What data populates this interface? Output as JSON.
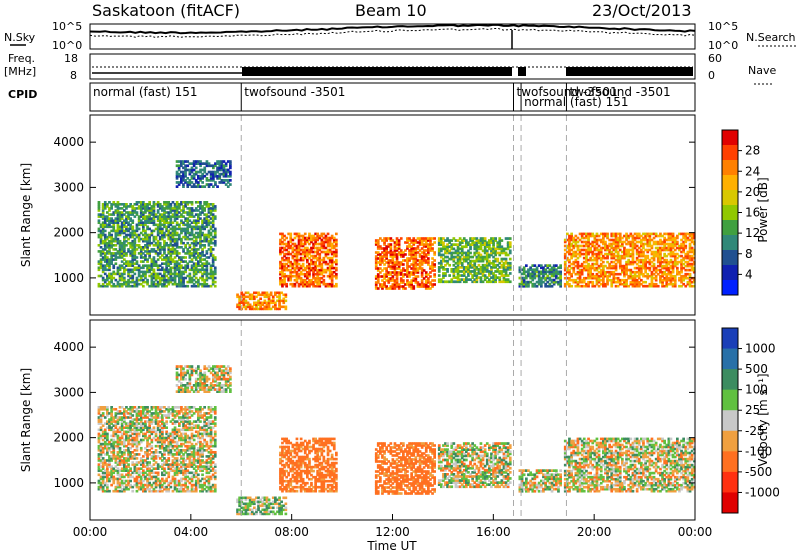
{
  "header": {
    "station": "Saskatoon (fitACF)",
    "beam": "Beam 10",
    "date": "23/Oct/2013"
  },
  "noise_panel": {
    "left_label": "N.Sky",
    "right_label": "N.Search",
    "left_ticks": [
      "10^5",
      "10^0"
    ],
    "right_ticks": [
      "10^5",
      "10^0"
    ]
  },
  "freq_panel": {
    "left_label_1": "Freq.",
    "left_label_2": "[MHz]",
    "left_ticks": [
      "18",
      "8"
    ],
    "right_label": "Nave",
    "right_ticks": [
      "60",
      "0"
    ]
  },
  "cpid_panel": {
    "label": "CPID",
    "segments": [
      {
        "text": "normal (fast) 151",
        "start_h": 0.0
      },
      {
        "text": "twofsound -3501",
        "start_h": 6.0
      },
      {
        "text": "twofsound -3501",
        "start_h": 16.8
      },
      {
        "text": "normal (fast) 151",
        "start_h": 17.1
      },
      {
        "text": "twofsound -3501",
        "start_h": 18.9
      }
    ]
  },
  "power_panel": {
    "ylabel": "Slant Range [km]",
    "yticks": [
      "4000",
      "3000",
      "2000",
      "1000"
    ],
    "colorbar_label": "Power [dB]",
    "colorbar_ticks": [
      "28",
      "24",
      "20",
      "16",
      "12",
      "8",
      "4"
    ],
    "colorbar_colors": [
      "#e00000",
      "#ff4000",
      "#ff8000",
      "#ffb000",
      "#d8c800",
      "#90c800",
      "#40a040",
      "#308878",
      "#205090",
      "#1020b0",
      "#0020ff"
    ]
  },
  "velocity_panel": {
    "ylabel": "Slant Range [km]",
    "yticks": [
      "4000",
      "3000",
      "2000",
      "1000"
    ],
    "colorbar_label": "Velocity [m s⁻¹]",
    "colorbar_ticks": [
      "1000",
      "500",
      "100",
      "25",
      "-25",
      "-100",
      "-500",
      "-1000"
    ],
    "colorbar_colors": [
      "#1a3fb8",
      "#2870a8",
      "#3c8c60",
      "#60c040",
      "#c8c8c8",
      "#f0a040",
      "#ff7020",
      "#ff3010",
      "#e00000"
    ]
  },
  "xaxis": {
    "label": "Time UT",
    "ticks": [
      "00:00",
      "04:00",
      "08:00",
      "12:00",
      "16:00",
      "20:00",
      "00:00"
    ]
  },
  "chart_data": {
    "type": "heatmap",
    "title": "Saskatoon (fitACF)   Beam 10   23/Oct/2013",
    "xlabel": "Time UT",
    "ylabel": "Slant Range [km]",
    "xlim_hours": [
      0,
      24
    ],
    "ylim_km": [
      180,
      4600
    ],
    "grid": false,
    "power_colorbar_db": [
      4,
      8,
      12,
      16,
      20,
      24,
      28
    ],
    "velocity_colorbar_ms": [
      -1000,
      -500,
      -100,
      -25,
      25,
      100,
      500,
      1000
    ],
    "mode_boundaries_h": [
      6.0,
      16.8,
      17.1,
      18.9
    ],
    "echo_regions": [
      {
        "t0": 0.3,
        "t1": 5.0,
        "r0": 800,
        "r1": 2700,
        "power_db": 12,
        "velocity_ms": 0
      },
      {
        "t0": 7.5,
        "t1": 9.8,
        "r0": 800,
        "r1": 2000,
        "power_db": 26,
        "velocity_ms": -200
      },
      {
        "t0": 11.3,
        "t1": 13.7,
        "r0": 750,
        "r1": 1900,
        "power_db": 26,
        "velocity_ms": -200
      },
      {
        "t0": 13.8,
        "t1": 16.7,
        "r0": 900,
        "r1": 1900,
        "power_db": 14,
        "velocity_ms": 0
      },
      {
        "t0": 17.0,
        "t1": 18.7,
        "r0": 800,
        "r1": 1300,
        "power_db": 10,
        "velocity_ms": 0
      },
      {
        "t0": 18.8,
        "t1": 24.0,
        "r0": 800,
        "r1": 2000,
        "power_db": 24,
        "velocity_ms": 0
      },
      {
        "t0": 3.4,
        "t1": 5.6,
        "r0": 3000,
        "r1": 3600,
        "power_db": 8,
        "velocity_ms": 0
      },
      {
        "t0": 5.8,
        "t1": 7.8,
        "r0": 300,
        "r1": 700,
        "power_db": 24,
        "velocity_ms": 50
      }
    ]
  }
}
